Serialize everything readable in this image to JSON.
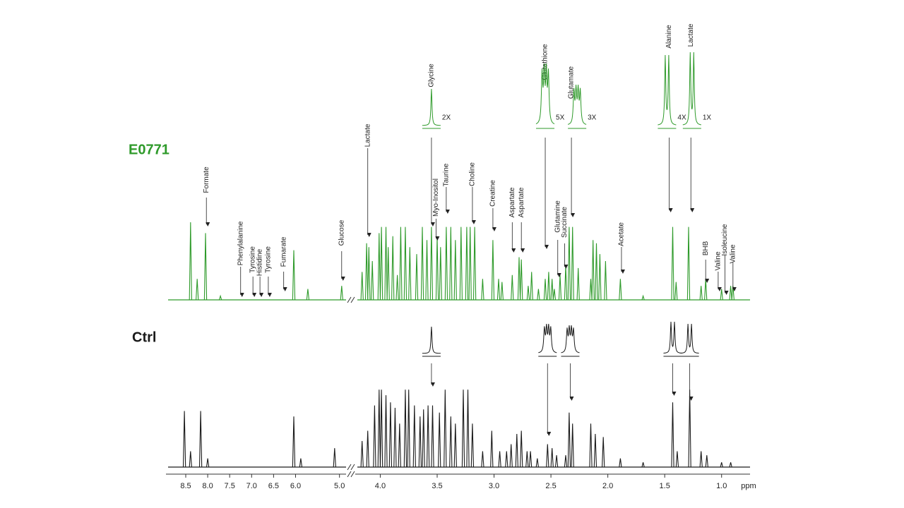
{
  "chart_data": {
    "type": "spectrum",
    "x_label": "ppm",
    "ylim": [
      0,
      100
    ],
    "x_segments": [
      {
        "xlim": [
          8.95,
          4.85
        ],
        "xticks": [
          8.5,
          {
            "value": 8.0,
            "label": "8.0"
          },
          7.5,
          {
            "value": 7.0,
            "label": "7.0"
          },
          6.5,
          {
            "value": 6.0,
            "label": "6.0"
          },
          {
            "value": 5.0,
            "label": "5.0"
          }
        ]
      },
      {
        "xlim": [
          4.22,
          0.75
        ],
        "xticks": [
          {
            "value": 4.0,
            "label": "4.0"
          },
          3.5,
          {
            "value": 3.0,
            "label": "3.0"
          },
          2.5,
          {
            "value": 2.0,
            "label": "2.0"
          },
          1.5,
          {
            "value": 1.0,
            "label": "1.0"
          }
        ]
      }
    ],
    "series": [
      {
        "name": "E0771",
        "color": "#2e9a2a",
        "x": [
          8.39,
          8.24,
          8.05,
          7.71,
          6.04,
          5.72,
          4.95,
          4.16,
          4.12,
          4.1,
          4.07,
          4.01,
          3.99,
          3.95,
          3.93,
          3.89,
          3.85,
          3.82,
          3.78,
          3.74,
          3.68,
          3.63,
          3.59,
          3.55,
          3.5,
          3.47,
          3.42,
          3.38,
          3.34,
          3.29,
          3.24,
          3.21,
          3.17,
          3.1,
          3.01,
          2.96,
          2.93,
          2.84,
          2.78,
          2.76,
          2.7,
          2.67,
          2.61,
          2.55,
          2.52,
          2.49,
          2.47,
          2.42,
          2.37,
          2.34,
          2.31,
          2.26,
          2.15,
          2.13,
          2.1,
          2.07,
          2.02,
          1.89,
          1.69,
          1.43,
          1.4,
          1.29,
          1.18,
          1.14,
          1.0,
          0.92,
          0.9
        ],
        "values": [
          100,
          27,
          86,
          5,
          64,
          14,
          18,
          36,
          73,
          68,
          50,
          86,
          94,
          94,
          68,
          82,
          32,
          94,
          94,
          68,
          59,
          94,
          77,
          94,
          82,
          68,
          94,
          94,
          77,
          94,
          94,
          94,
          94,
          27,
          77,
          27,
          23,
          32,
          55,
          52,
          18,
          36,
          14,
          27,
          36,
          27,
          14,
          32,
          45,
          94,
          94,
          41,
          27,
          77,
          73,
          59,
          50,
          27,
          5,
          94,
          23,
          94,
          18,
          27,
          14,
          18,
          18
        ],
        "annotations": [
          {
            "label": "Formate",
            "x": 8.03
          },
          {
            "label": "Phenylalanine",
            "x": 7.25
          },
          {
            "label": "Tyrosine",
            "x": 6.97
          },
          {
            "label": "Histidine",
            "x": 6.81
          },
          {
            "label": "Tyrosine",
            "x": 6.62
          },
          {
            "label": "Fumarate",
            "x": 6.27
          },
          {
            "label": "Glucose",
            "x": 4.95
          },
          {
            "label": "Lactate",
            "x": 4.11
          },
          {
            "label": "Glycine",
            "x": 3.55
          },
          {
            "label": "Myo-Inositol",
            "x": 3.51
          },
          {
            "label": "Taurine",
            "x": 3.42
          },
          {
            "label": "Choline",
            "x": 3.19
          },
          {
            "label": "Creatine",
            "x": 3.01
          },
          {
            "label": "Aspartate",
            "x": 2.84
          },
          {
            "label": "Aspartate",
            "x": 2.76
          },
          {
            "label": "Glutathione",
            "x": 2.55
          },
          {
            "label": "Glutamine",
            "x": 2.44
          },
          {
            "label": "Succinate",
            "x": 2.38
          },
          {
            "label": "Glutamate",
            "x": 2.32
          },
          {
            "label": "Acetate",
            "x": 1.88
          },
          {
            "label": "Alanine",
            "x": 1.46
          },
          {
            "label": "Lactate",
            "x": 1.27
          },
          {
            "label": "BHB",
            "x": 1.14
          },
          {
            "label": "Valine",
            "x": 1.03
          },
          {
            "label": "Isoleucine",
            "x": 0.97
          },
          {
            "label": "Valine",
            "x": 0.9
          }
        ],
        "insets": [
          {
            "label": "2X",
            "x": 3.55
          },
          {
            "label": "5X",
            "x": 2.55
          },
          {
            "label": "3X",
            "x": 2.27
          },
          {
            "label": "4X",
            "x": 1.48
          },
          {
            "label": "1X",
            "x": 1.26
          }
        ]
      },
      {
        "name": "Ctrl",
        "color": "#1a1a1a",
        "x": [
          8.53,
          8.39,
          8.16,
          8.0,
          6.04,
          5.88,
          5.11,
          4.16,
          4.11,
          4.05,
          4.01,
          3.99,
          3.95,
          3.91,
          3.87,
          3.83,
          3.78,
          3.75,
          3.7,
          3.65,
          3.62,
          3.58,
          3.54,
          3.48,
          3.43,
          3.38,
          3.34,
          3.27,
          3.23,
          3.19,
          3.1,
          3.02,
          2.95,
          2.89,
          2.85,
          2.8,
          2.76,
          2.71,
          2.68,
          2.62,
          2.53,
          2.49,
          2.45,
          2.37,
          2.34,
          2.31,
          2.15,
          2.11,
          2.04,
          1.89,
          1.69,
          1.43,
          1.39,
          1.28,
          1.18,
          1.13,
          1.0,
          0.92
        ],
        "values": [
          71,
          20,
          71,
          11,
          64,
          11,
          24,
          33,
          46,
          78,
          98,
          98,
          91,
          82,
          75,
          55,
          98,
          98,
          78,
          64,
          73,
          78,
          78,
          69,
          98,
          64,
          55,
          98,
          98,
          55,
          20,
          46,
          20,
          20,
          29,
          42,
          46,
          20,
          20,
          11,
          29,
          24,
          15,
          15,
          69,
          55,
          55,
          42,
          38,
          11,
          6,
          82,
          20,
          98,
          20,
          15,
          6,
          6
        ],
        "insets": [
          {
            "x": 3.55
          },
          {
            "x": 2.53
          },
          {
            "x": 2.33
          },
          {
            "x": 1.43
          },
          {
            "x": 1.28
          }
        ]
      }
    ]
  }
}
